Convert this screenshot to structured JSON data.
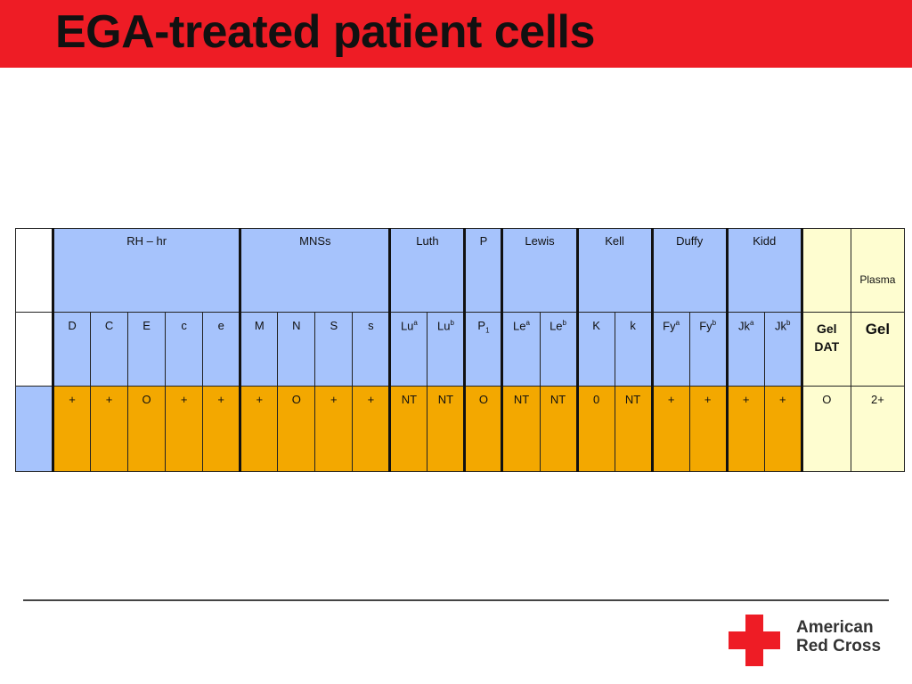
{
  "title": "EGA-treated patient cells",
  "colors": {
    "accent": "#ee1c25",
    "header_blue": "#a6c3fc",
    "value_orange": "#f3a800",
    "cream": "#fefdd0"
  },
  "table": {
    "group_headers": [
      "RH – hr",
      "MNSs",
      "Luth",
      "P",
      "Lewis",
      "Kell",
      "Duffy",
      "Kidd"
    ],
    "plasma_header": "Plasma",
    "antigens": [
      {
        "base": "D",
        "sup": "",
        "sub": ""
      },
      {
        "base": "C",
        "sup": "",
        "sub": ""
      },
      {
        "base": "E",
        "sup": "",
        "sub": ""
      },
      {
        "base": "c",
        "sup": "",
        "sub": ""
      },
      {
        "base": "e",
        "sup": "",
        "sub": ""
      },
      {
        "base": "M",
        "sup": "",
        "sub": ""
      },
      {
        "base": "N",
        "sup": "",
        "sub": ""
      },
      {
        "base": "S",
        "sup": "",
        "sub": ""
      },
      {
        "base": "s",
        "sup": "",
        "sub": ""
      },
      {
        "base": "Lu",
        "sup": "a",
        "sub": ""
      },
      {
        "base": "Lu",
        "sup": "b",
        "sub": ""
      },
      {
        "base": "P",
        "sup": "",
        "sub": "1"
      },
      {
        "base": "Le",
        "sup": "a",
        "sub": ""
      },
      {
        "base": "Le",
        "sup": "b",
        "sub": ""
      },
      {
        "base": "K",
        "sup": "",
        "sub": ""
      },
      {
        "base": "k",
        "sup": "",
        "sub": ""
      },
      {
        "base": "Fy",
        "sup": "a",
        "sub": ""
      },
      {
        "base": "Fy",
        "sup": "b",
        "sub": ""
      },
      {
        "base": "Jk",
        "sup": "a",
        "sub": ""
      },
      {
        "base": "Jk",
        "sup": "b",
        "sub": ""
      }
    ],
    "gel_dat_header": "Gel DAT",
    "gel_header": "Gel",
    "results": [
      "+",
      "+",
      "O",
      "+",
      "+",
      "+",
      "O",
      "+",
      "+",
      "NT",
      "NT",
      "O",
      "NT",
      "NT",
      "0",
      "NT",
      "+",
      "+",
      "+",
      "+"
    ],
    "gel_dat_value": "O",
    "gel_value": "2+"
  },
  "logo": {
    "line1": "American",
    "line2": "Red Cross"
  }
}
